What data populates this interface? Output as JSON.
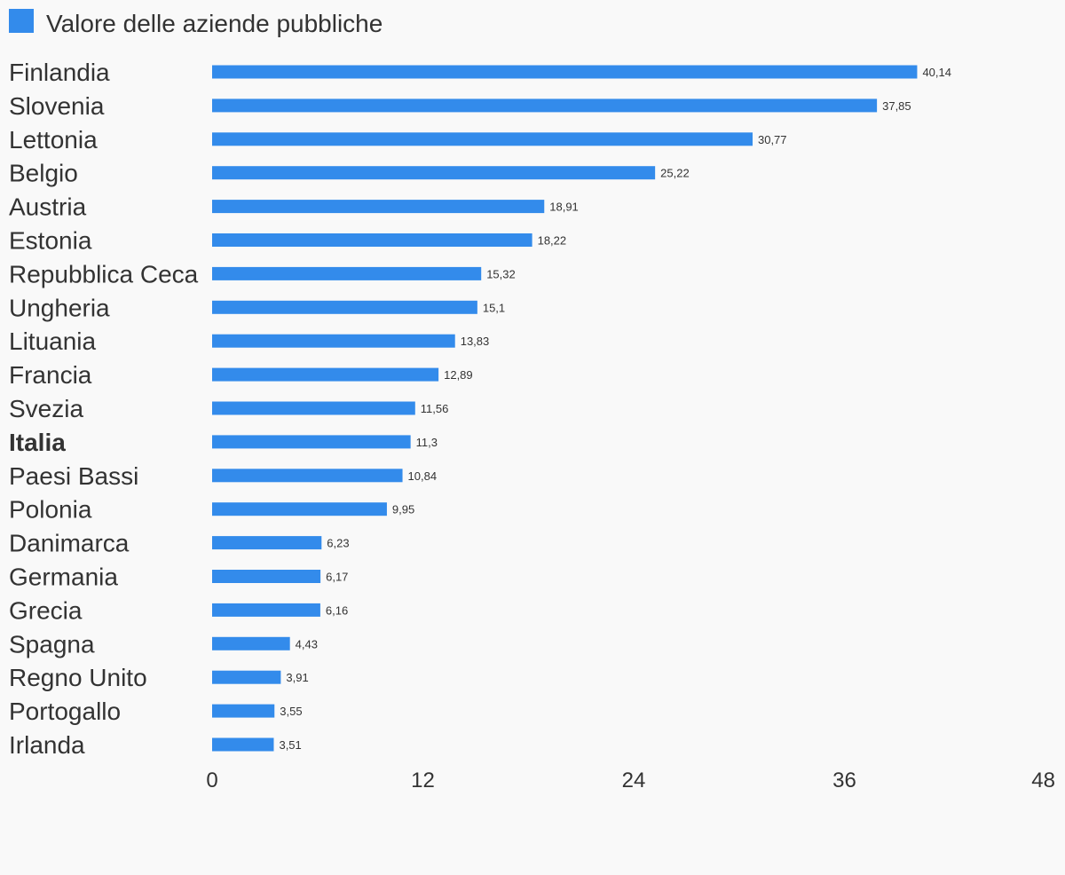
{
  "chart_data": {
    "type": "bar",
    "orientation": "horizontal",
    "legend": {
      "position": "top-left",
      "entries": [
        {
          "name": "Valore delle aziende pubbliche",
          "color": "#338beb"
        }
      ]
    },
    "series": [
      {
        "name": "Valore delle aziende pubbliche",
        "color": "#338beb"
      }
    ],
    "categories": [
      "Finlandia",
      "Slovenia",
      "Lettonia",
      "Belgio",
      "Austria",
      "Estonia",
      "Repubblica Ceca",
      "Ungheria",
      "Lituania",
      "Francia",
      "Svezia",
      "Italia",
      "Paesi Bassi",
      "Polonia",
      "Danimarca",
      "Germania",
      "Grecia",
      "Spagna",
      "Regno Unito",
      "Portogallo",
      "Irlanda"
    ],
    "highlighted_category": "Italia",
    "values": [
      40.14,
      37.85,
      30.77,
      25.22,
      18.91,
      18.22,
      15.32,
      15.1,
      13.83,
      12.89,
      11.56,
      11.3,
      10.84,
      9.95,
      6.23,
      6.17,
      6.16,
      4.43,
      3.91,
      3.55,
      3.51
    ],
    "value_labels": [
      "40,14",
      "37,85",
      "30,77",
      "25,22",
      "18,91",
      "18,22",
      "15,32",
      "15,1",
      "13,83",
      "12,89",
      "11,56",
      "11,3",
      "10,84",
      "9,95",
      "6,23",
      "6,17",
      "6,16",
      "4,43",
      "3,91",
      "3,55",
      "3,51"
    ],
    "xlim": [
      0,
      48
    ],
    "x_ticks": [
      0,
      12,
      24,
      36,
      48
    ],
    "x_tick_labels": [
      "0",
      "12",
      "24",
      "36",
      "48"
    ],
    "grid": false,
    "xlabel": "",
    "ylabel": ""
  }
}
